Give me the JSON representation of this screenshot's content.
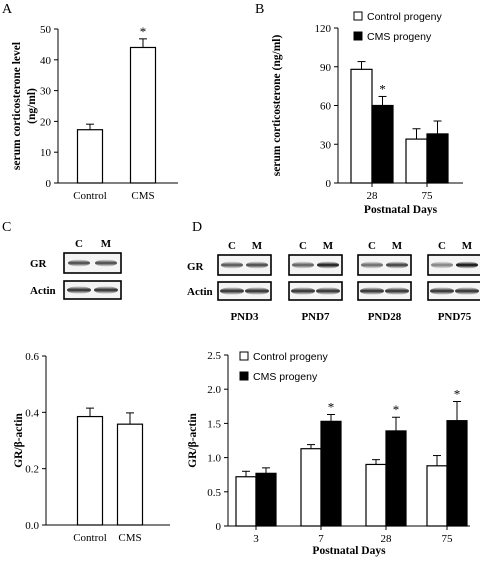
{
  "panels": {
    "a": {
      "letter": "A"
    },
    "b": {
      "letter": "B"
    },
    "c": {
      "letter": "C"
    },
    "d": {
      "letter": "D"
    }
  },
  "blots": {
    "c": {
      "lanes": [
        "C",
        "M"
      ],
      "rows": [
        "GR",
        "Actin"
      ],
      "gr_intensity": [
        0.75,
        0.75
      ]
    },
    "d": {
      "lanes": [
        "C",
        "M"
      ],
      "rows": [
        "GR",
        "Actin"
      ],
      "groups": [
        {
          "label": "PND3",
          "gr_intensity": [
            0.7,
            0.75
          ]
        },
        {
          "label": "PND7",
          "gr_intensity": [
            0.65,
            0.95
          ]
        },
        {
          "label": "PND28",
          "gr_intensity": [
            0.6,
            0.8
          ]
        },
        {
          "label": "PND75",
          "gr_intensity": [
            0.5,
            1.0
          ]
        }
      ]
    }
  },
  "chart_data": [
    {
      "id": "A",
      "type": "bar",
      "categories": [
        "Control",
        "CMS"
      ],
      "values": [
        17.3,
        44
      ],
      "errors": [
        1.8,
        2.8
      ],
      "fills": [
        "white",
        "white"
      ],
      "significance": [
        "",
        "*"
      ],
      "ylabel": "serum corticosterone level (ng/ml)",
      "ylabel_lines": [
        "serum corticosterone level",
        "(ng/ml)"
      ],
      "ylim": [
        0,
        50
      ],
      "yticks": [
        "0",
        "10",
        "20",
        "30",
        "40",
        "50"
      ]
    },
    {
      "id": "B",
      "type": "bar",
      "categories": [
        "28",
        "75"
      ],
      "series": [
        {
          "name": "Control progeny",
          "values": [
            88,
            34
          ],
          "errors": [
            6,
            8
          ],
          "fill": "white"
        },
        {
          "name": "CMS progeny",
          "values": [
            60,
            38
          ],
          "errors": [
            7,
            10
          ],
          "fill": "black"
        }
      ],
      "significance": [
        [
          "",
          "*"
        ],
        [
          "",
          ""
        ]
      ],
      "xlabel": "Postnatal Days",
      "ylabel": "serum corticosterone (ng/ml)",
      "ylim": [
        0,
        120
      ],
      "yticks": [
        "0",
        "30",
        "60",
        "90",
        "120"
      ],
      "legend": "top-right"
    },
    {
      "id": "C",
      "type": "bar",
      "categories": [
        "Control",
        "CMS"
      ],
      "values": [
        0.385,
        0.358
      ],
      "errors": [
        0.03,
        0.04
      ],
      "fills": [
        "white",
        "white"
      ],
      "significance": [
        "",
        ""
      ],
      "ylabel": "GR/β-actin",
      "ylim": [
        0,
        0.6
      ],
      "yticks": [
        "0.0",
        "0.2",
        "0.4",
        "0.6"
      ]
    },
    {
      "id": "D",
      "type": "bar",
      "categories": [
        "3",
        "7",
        "28",
        "75"
      ],
      "series": [
        {
          "name": "Control progeny",
          "values": [
            0.72,
            1.13,
            0.9,
            0.88
          ],
          "errors": [
            0.08,
            0.06,
            0.07,
            0.15
          ],
          "fill": "white"
        },
        {
          "name": "CMS progeny",
          "values": [
            0.77,
            1.53,
            1.39,
            1.54
          ],
          "errors": [
            0.08,
            0.1,
            0.2,
            0.28
          ],
          "fill": "black"
        }
      ],
      "significance": [
        [
          "",
          ""
        ],
        [
          "",
          "*"
        ],
        [
          "",
          "*"
        ],
        [
          "",
          "*"
        ]
      ],
      "xlabel": "Postnatal Days",
      "ylabel": "GR/β-actin",
      "ylim": [
        0,
        2.5
      ],
      "yticks": [
        "0",
        "0.5",
        "1.0",
        "1.5",
        "2.0",
        "2.5"
      ],
      "legend": "top-left"
    }
  ]
}
